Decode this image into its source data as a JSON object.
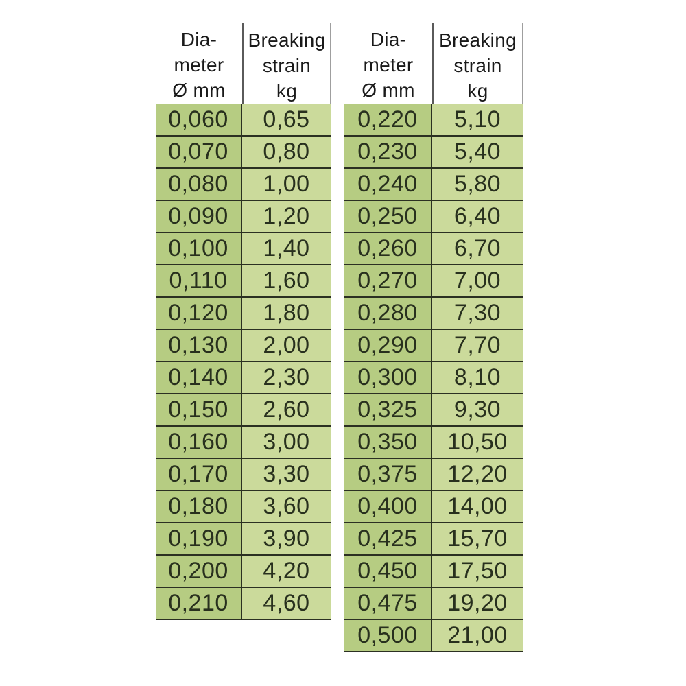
{
  "page": {
    "background": "#ffffff",
    "description": "Two fishing-line specification tables: diameter (mm) vs breaking strain (kg)"
  },
  "style": {
    "diameter_col_bg": "#b6cc82",
    "strain_col_bg": "#cbda9b",
    "grid_line": "#2b3022",
    "header_divider": "#5a5a5a",
    "cell_text": "#28301e",
    "header_text": "#1a1a1a"
  },
  "tables": [
    {
      "id": "left",
      "header": {
        "diameter": "Dia-\nmeter\nØ mm",
        "strain": "Breaking\nstrain\nkg"
      },
      "rows": [
        {
          "diameter": "0,060",
          "strain": "0,65"
        },
        {
          "diameter": "0,070",
          "strain": "0,80"
        },
        {
          "diameter": "0,080",
          "strain": "1,00"
        },
        {
          "diameter": "0,090",
          "strain": "1,20"
        },
        {
          "diameter": "0,100",
          "strain": "1,40"
        },
        {
          "diameter": "0,110",
          "strain": "1,60"
        },
        {
          "diameter": "0,120",
          "strain": "1,80"
        },
        {
          "diameter": "0,130",
          "strain": "2,00"
        },
        {
          "diameter": "0,140",
          "strain": "2,30"
        },
        {
          "diameter": "0,150",
          "strain": "2,60"
        },
        {
          "diameter": "0,160",
          "strain": "3,00"
        },
        {
          "diameter": "0,170",
          "strain": "3,30"
        },
        {
          "diameter": "0,180",
          "strain": "3,60"
        },
        {
          "diameter": "0,190",
          "strain": "3,90"
        },
        {
          "diameter": "0,200",
          "strain": "4,20"
        },
        {
          "diameter": "0,210",
          "strain": "4,60"
        }
      ]
    },
    {
      "id": "right",
      "header": {
        "diameter": "Dia-\nmeter\nØ mm",
        "strain": "Breaking\nstrain\nkg"
      },
      "rows": [
        {
          "diameter": "0,220",
          "strain": "5,10"
        },
        {
          "diameter": "0,230",
          "strain": "5,40"
        },
        {
          "diameter": "0,240",
          "strain": "5,80"
        },
        {
          "diameter": "0,250",
          "strain": "6,40"
        },
        {
          "diameter": "0,260",
          "strain": "6,70"
        },
        {
          "diameter": "0,270",
          "strain": "7,00"
        },
        {
          "diameter": "0,280",
          "strain": "7,30"
        },
        {
          "diameter": "0,290",
          "strain": "7,70"
        },
        {
          "diameter": "0,300",
          "strain": "8,10"
        },
        {
          "diameter": "0,325",
          "strain": "9,30"
        },
        {
          "diameter": "0,350",
          "strain": "10,50"
        },
        {
          "diameter": "0,375",
          "strain": "12,20"
        },
        {
          "diameter": "0,400",
          "strain": "14,00"
        },
        {
          "diameter": "0,425",
          "strain": "15,70"
        },
        {
          "diameter": "0,450",
          "strain": "17,50"
        },
        {
          "diameter": "0,475",
          "strain": "19,20"
        },
        {
          "diameter": "0,500",
          "strain": "21,00"
        }
      ]
    }
  ],
  "chart_data": [
    {
      "type": "table",
      "title": "Diameter vs breaking strain (left table)",
      "columns": [
        "Diameter Ø mm",
        "Breaking strain kg"
      ],
      "rows": [
        [
          0.06,
          0.65
        ],
        [
          0.07,
          0.8
        ],
        [
          0.08,
          1.0
        ],
        [
          0.09,
          1.2
        ],
        [
          0.1,
          1.4
        ],
        [
          0.11,
          1.6
        ],
        [
          0.12,
          1.8
        ],
        [
          0.13,
          2.0
        ],
        [
          0.14,
          2.3
        ],
        [
          0.15,
          2.6
        ],
        [
          0.16,
          3.0
        ],
        [
          0.17,
          3.3
        ],
        [
          0.18,
          3.6
        ],
        [
          0.19,
          3.9
        ],
        [
          0.2,
          4.2
        ],
        [
          0.21,
          4.6
        ]
      ]
    },
    {
      "type": "table",
      "title": "Diameter vs breaking strain (right table)",
      "columns": [
        "Diameter Ø mm",
        "Breaking strain kg"
      ],
      "rows": [
        [
          0.22,
          5.1
        ],
        [
          0.23,
          5.4
        ],
        [
          0.24,
          5.8
        ],
        [
          0.25,
          6.4
        ],
        [
          0.26,
          6.7
        ],
        [
          0.27,
          7.0
        ],
        [
          0.28,
          7.3
        ],
        [
          0.29,
          7.7
        ],
        [
          0.3,
          8.1
        ],
        [
          0.325,
          9.3
        ],
        [
          0.35,
          10.5
        ],
        [
          0.375,
          12.2
        ],
        [
          0.4,
          14.0
        ],
        [
          0.425,
          15.7
        ],
        [
          0.45,
          17.5
        ],
        [
          0.475,
          19.2
        ],
        [
          0.5,
          21.0
        ]
      ]
    }
  ]
}
